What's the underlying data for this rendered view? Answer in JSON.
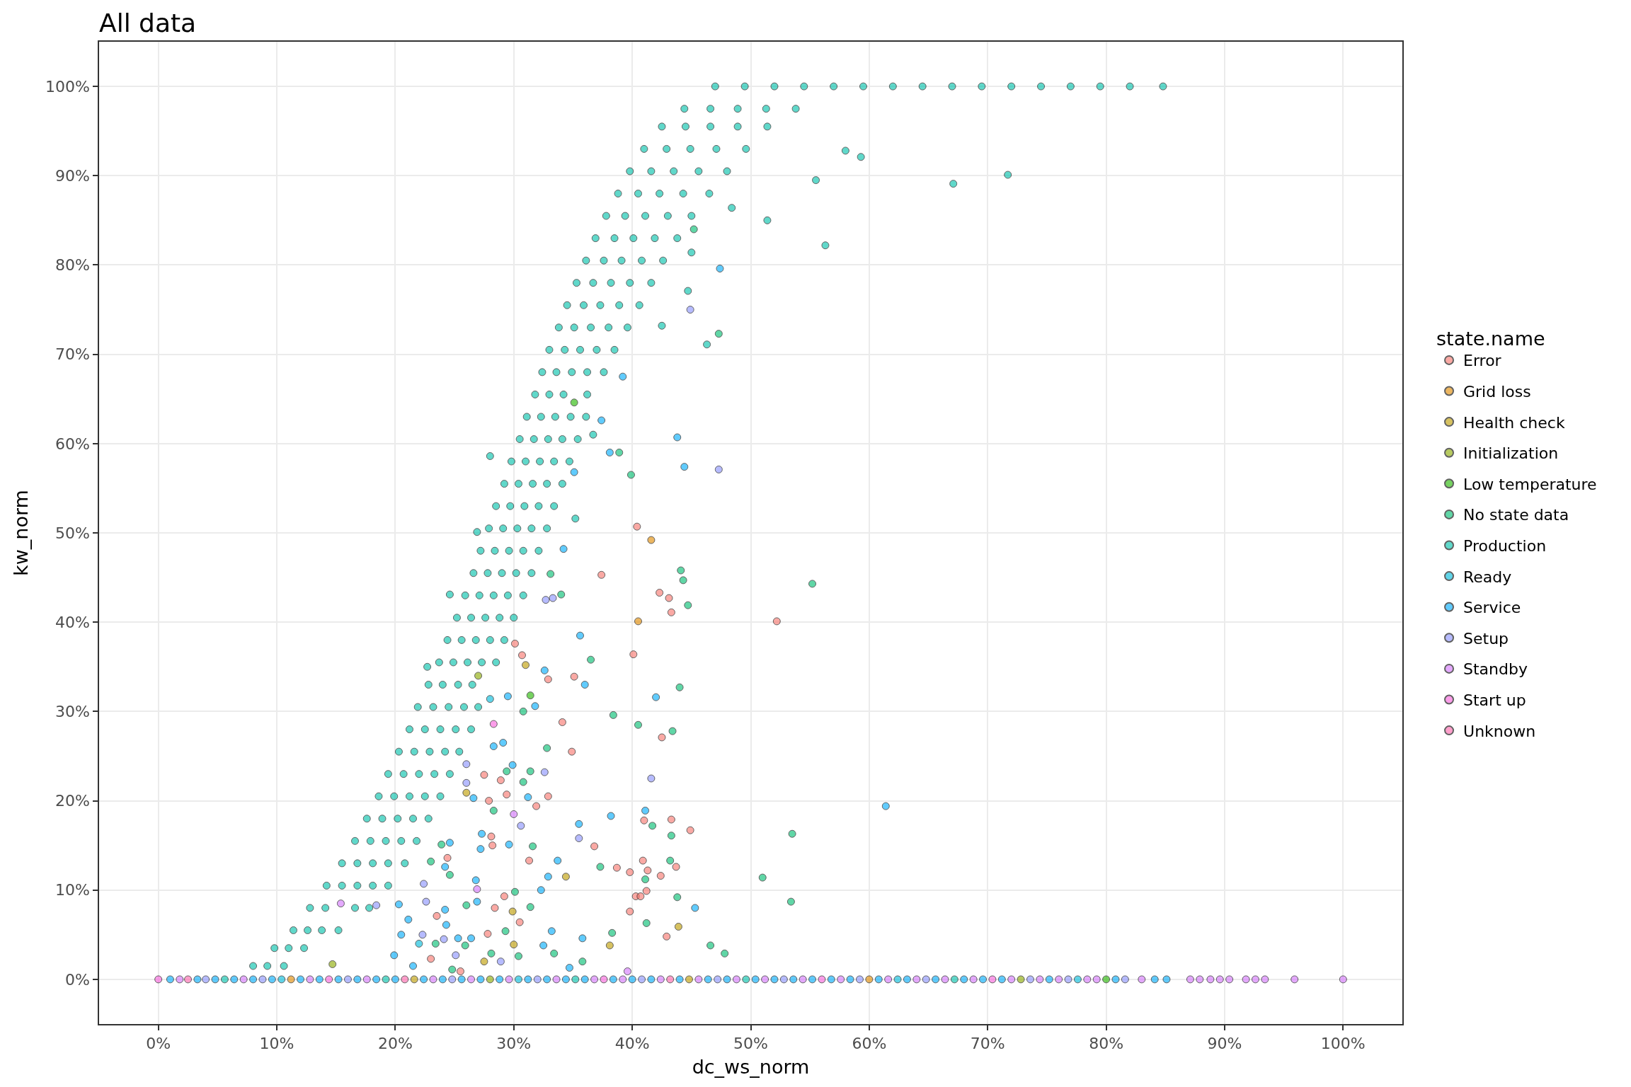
{
  "chart_data": {
    "type": "scatter",
    "title": "All data",
    "xlabel": "dc_ws_norm",
    "ylabel": "kw_norm",
    "legend_title": "state.name",
    "xlim": [
      -5,
      105
    ],
    "ylim": [
      -5,
      105
    ],
    "xticks": [
      {
        "value": 0,
        "label": "0%"
      },
      {
        "value": 10,
        "label": "10%"
      },
      {
        "value": 20,
        "label": "20%"
      },
      {
        "value": 30,
        "label": "30%"
      },
      {
        "value": 40,
        "label": "40%"
      },
      {
        "value": 50,
        "label": "50%"
      },
      {
        "value": 60,
        "label": "60%"
      },
      {
        "value": 70,
        "label": "70%"
      },
      {
        "value": 80,
        "label": "80%"
      },
      {
        "value": 90,
        "label": "90%"
      },
      {
        "value": 100,
        "label": "100%"
      }
    ],
    "yticks": [
      {
        "value": 0,
        "label": "0%"
      },
      {
        "value": 10,
        "label": "10%"
      },
      {
        "value": 20,
        "label": "20%"
      },
      {
        "value": 30,
        "label": "30%"
      },
      {
        "value": 40,
        "label": "40%"
      },
      {
        "value": 50,
        "label": "50%"
      },
      {
        "value": 60,
        "label": "60%"
      },
      {
        "value": 70,
        "label": "70%"
      },
      {
        "value": 80,
        "label": "80%"
      },
      {
        "value": 90,
        "label": "90%"
      },
      {
        "value": 100,
        "label": "100%"
      }
    ],
    "grid": true,
    "legend": "right",
    "marker": "circle",
    "series": [
      {
        "name": "Error",
        "color": "#f8766d",
        "x": [
          40.4,
          37.4,
          42.3,
          43.1,
          43.3,
          52.2,
          40.1,
          30.1,
          30.7,
          35.1,
          32.9,
          34.1,
          34.9,
          42.5,
          27.5,
          28.9,
          29.4,
          27.9,
          32.9,
          31.9,
          41.0,
          43.3,
          44.9,
          28.1,
          28.2,
          24.4,
          31.3,
          36.8,
          38.7,
          39.8,
          41.3,
          40.9,
          43.7,
          42.4,
          40.3,
          40.7,
          41.2,
          29.2,
          28.4,
          23.5,
          39.8,
          27.8,
          30.5,
          42.9,
          23.0,
          25.5
        ],
        "values": [
          50.7,
          45.3,
          43.3,
          42.7,
          41.1,
          40.1,
          36.4,
          37.6,
          36.3,
          33.9,
          33.6,
          28.8,
          25.5,
          27.1,
          22.9,
          22.3,
          20.7,
          20.0,
          20.5,
          19.4,
          17.8,
          17.9,
          16.7,
          16.0,
          15.0,
          13.6,
          13.3,
          14.9,
          12.5,
          12.0,
          12.2,
          13.3,
          12.6,
          11.6,
          9.3,
          9.3,
          9.9,
          9.3,
          8.0,
          7.1,
          7.6,
          5.1,
          6.4,
          4.8,
          2.3,
          0.9
        ]
      },
      {
        "name": "Grid loss",
        "color": "#e18a00",
        "x": [
          40.5,
          41.6,
          11.2,
          60.0
        ],
        "values": [
          40.1,
          49.2,
          0,
          0
        ]
      },
      {
        "name": "Health check",
        "color": "#be9c00",
        "x": [
          31.0,
          34.4,
          43.9,
          38.1,
          30.0,
          29.9,
          27.5,
          26.0,
          21.6,
          44.8
        ],
        "values": [
          35.2,
          11.5,
          5.9,
          3.8,
          3.9,
          7.6,
          2.0,
          20.9,
          0,
          0
        ]
      },
      {
        "name": "Initialization",
        "color": "#8cab00",
        "x": [
          27.0,
          14.7,
          28.0,
          72.8
        ],
        "values": [
          34.0,
          1.7,
          0,
          0
        ]
      },
      {
        "name": "Low temperature",
        "color": "#24b700",
        "x": [
          31.4,
          35.1,
          80.0
        ],
        "values": [
          31.8,
          64.6,
          0
        ]
      },
      {
        "name": "No state data",
        "color": "#00be70",
        "x": [
          33.1,
          34.0,
          44.1,
          44.3,
          44.7,
          36.5,
          44.0,
          38.4,
          40.5,
          43.4,
          30.8,
          32.8,
          31.4,
          30.8,
          29.4,
          28.3,
          31.6,
          37.3,
          43.2,
          41.7,
          43.3,
          41.1,
          43.8,
          41.2,
          38.3,
          46.6,
          47.8,
          51.0,
          30.1,
          31.4,
          26.0,
          29.3,
          30.4,
          28.1,
          23.9,
          24.6,
          23.0,
          25.9,
          23.4,
          24.8,
          33.4,
          35.8,
          45.2,
          47.3,
          39.9,
          38.9,
          55.2,
          53.4,
          53.5
        ],
        "values": [
          45.4,
          43.1,
          45.8,
          44.7,
          41.9,
          35.8,
          32.7,
          29.6,
          28.5,
          27.8,
          30.0,
          25.9,
          23.3,
          22.1,
          23.3,
          18.9,
          14.9,
          12.6,
          13.3,
          17.2,
          16.1,
          11.2,
          9.2,
          6.3,
          5.2,
          3.8,
          2.9,
          11.4,
          9.8,
          8.1,
          8.3,
          5.4,
          2.6,
          2.9,
          15.1,
          11.7,
          13.2,
          3.8,
          4.0,
          1.1,
          2.9,
          2.0,
          84.0,
          72.3,
          56.5,
          59.0,
          44.3,
          8.7,
          16.3
        ]
      },
      {
        "name": "Production",
        "color": "#00c1ab",
        "x": [
          8.0,
          9.2,
          10.6,
          9.8,
          11.0,
          12.3,
          11.4,
          12.6,
          13.8,
          15.2,
          12.8,
          14.1,
          16.6,
          17.8,
          14.2,
          15.5,
          16.8,
          18.1,
          19.4,
          15.5,
          16.8,
          18.1,
          19.4,
          20.8,
          16.6,
          17.9,
          19.2,
          20.5,
          21.8,
          17.6,
          18.9,
          20.2,
          21.5,
          22.8,
          18.6,
          19.9,
          21.2,
          22.5,
          23.8,
          19.4,
          20.7,
          22.0,
          23.3,
          24.6,
          20.3,
          21.6,
          22.9,
          24.2,
          25.4,
          21.2,
          22.5,
          23.8,
          25.1,
          26.4,
          21.9,
          23.2,
          24.5,
          25.8,
          27.0,
          22.8,
          24.0,
          25.3,
          26.5,
          23.7,
          24.9,
          26.1,
          27.3,
          28.5,
          24.4,
          25.6,
          26.8,
          28.0,
          29.2,
          25.2,
          26.4,
          27.6,
          28.8,
          30.0,
          25.9,
          27.1,
          28.3,
          29.5,
          30.8,
          26.6,
          27.8,
          29.0,
          30.2,
          31.5,
          27.2,
          28.4,
          29.6,
          30.8,
          32.1,
          27.9,
          29.1,
          30.3,
          31.5,
          32.8,
          28.5,
          29.7,
          30.9,
          32.1,
          33.4,
          29.2,
          30.4,
          31.6,
          32.8,
          34.1,
          29.8,
          31.0,
          32.2,
          33.4,
          34.7,
          30.5,
          31.7,
          32.9,
          34.1,
          35.4,
          31.1,
          32.3,
          33.5,
          34.8,
          36.1,
          31.8,
          33.0,
          34.2,
          36.2,
          32.4,
          33.6,
          34.9,
          36.2,
          37.6,
          33.0,
          34.3,
          35.6,
          37.0,
          38.5,
          33.8,
          35.1,
          36.5,
          38.0,
          39.6,
          34.5,
          35.9,
          37.3,
          38.9,
          40.6,
          35.3,
          36.7,
          38.2,
          39.8,
          41.6,
          36.1,
          37.6,
          39.1,
          40.8,
          42.6,
          36.9,
          38.5,
          40.1,
          41.9,
          43.8,
          37.8,
          39.4,
          41.1,
          43.0,
          45.0,
          38.8,
          40.5,
          42.3,
          44.3,
          46.5,
          39.8,
          41.6,
          43.5,
          45.6,
          48.0,
          41.0,
          42.9,
          44.9,
          47.1,
          49.6,
          42.5,
          44.5,
          46.6,
          48.9,
          51.4,
          44.4,
          46.6,
          48.9,
          51.3,
          53.8,
          47.0,
          49.5,
          52.0,
          54.5,
          57.0,
          59.5,
          62.0,
          64.5,
          67.0,
          69.5,
          72.0,
          74.5,
          77.0,
          79.5,
          82.0,
          84.8,
          67.1,
          71.7,
          56.3,
          51.4,
          59.3,
          58.0,
          55.5,
          46.3,
          45.0,
          44.7,
          48.4,
          42.5,
          22.7,
          24.6,
          26.9,
          28.0,
          35.2,
          36.7,
          5.6,
          19.2,
          35.2,
          49.6,
          67.2
        ],
        "values": [
          1.5,
          1.5,
          1.5,
          3.5,
          3.5,
          3.5,
          5.5,
          5.5,
          5.5,
          5.5,
          8,
          8,
          8,
          8,
          10.5,
          10.5,
          10.5,
          10.5,
          10.5,
          13,
          13,
          13,
          13,
          13,
          15.5,
          15.5,
          15.5,
          15.5,
          15.5,
          18,
          18,
          18,
          18,
          18,
          20.5,
          20.5,
          20.5,
          20.5,
          20.5,
          23,
          23,
          23,
          23,
          23,
          25.5,
          25.5,
          25.5,
          25.5,
          25.5,
          28,
          28,
          28,
          28,
          28,
          30.5,
          30.5,
          30.5,
          30.5,
          30.5,
          33,
          33,
          33,
          33,
          35.5,
          35.5,
          35.5,
          35.5,
          35.5,
          38,
          38,
          38,
          38,
          38,
          40.5,
          40.5,
          40.5,
          40.5,
          40.5,
          43,
          43,
          43,
          43,
          43,
          45.5,
          45.5,
          45.5,
          45.5,
          45.5,
          48,
          48,
          48,
          48,
          48,
          50.5,
          50.5,
          50.5,
          50.5,
          50.5,
          53,
          53,
          53,
          53,
          53,
          55.5,
          55.5,
          55.5,
          55.5,
          55.5,
          58,
          58,
          58,
          58,
          58,
          60.5,
          60.5,
          60.5,
          60.5,
          60.5,
          63,
          63,
          63,
          63,
          63,
          65.5,
          65.5,
          65.5,
          65.5,
          68,
          68,
          68,
          68,
          68,
          70.5,
          70.5,
          70.5,
          70.5,
          70.5,
          73,
          73,
          73,
          73,
          73,
          75.5,
          75.5,
          75.5,
          75.5,
          75.5,
          78,
          78,
          78,
          78,
          78,
          80.5,
          80.5,
          80.5,
          80.5,
          80.5,
          83,
          83,
          83,
          83,
          83,
          85.5,
          85.5,
          85.5,
          85.5,
          85.5,
          88,
          88,
          88,
          88,
          88,
          90.5,
          90.5,
          90.5,
          90.5,
          90.5,
          93,
          93,
          93,
          93,
          93,
          95.5,
          95.5,
          95.5,
          95.5,
          95.5,
          97.5,
          97.5,
          97.5,
          97.5,
          97.5,
          100,
          100,
          100,
          100,
          100,
          100,
          100,
          100,
          100,
          100,
          100,
          100,
          100,
          100,
          100,
          100,
          89.1,
          90.1,
          82.2,
          85.0,
          92.1,
          92.8,
          89.5,
          71.1,
          81.4,
          77.1,
          86.4,
          73.2,
          35.0,
          43.1,
          50.1,
          58.6,
          51.6,
          61.0,
          0,
          0,
          0,
          0,
          0
        ]
      },
      {
        "name": "Ready",
        "color": "#00bbda",
        "x": [
          28.0,
          22.0,
          10.4,
          30.4,
          62.4,
          77.6
        ],
        "values": [
          31.4,
          4.0,
          0,
          0,
          0,
          0
        ]
      },
      {
        "name": "Service",
        "color": "#00acfc",
        "x": [
          47.4,
          39.2,
          37.4,
          43.8,
          38.1,
          44.4,
          35.1,
          34.2,
          35.6,
          36.0,
          32.6,
          29.5,
          31.8,
          42.0,
          29.1,
          28.3,
          29.9,
          31.2,
          26.6,
          38.2,
          41.1,
          35.5,
          24.6,
          27.3,
          27.2,
          29.6,
          33.7,
          24.2,
          32.9,
          32.3,
          26.8,
          45.3,
          26.9,
          24.2,
          20.3,
          24.3,
          21.1,
          25.3,
          26.4,
          20.5,
          33.2,
          35.8,
          32.5,
          34.7,
          21.5,
          19.9,
          61.4,
          1.0,
          3.3,
          4.8,
          6.4,
          8.0,
          9.6,
          12.0,
          13.6,
          15.2,
          16.8,
          18.4,
          20.0,
          22.4,
          24.0,
          25.6,
          27.2,
          28.8,
          31.2,
          32.8,
          34.4,
          36.0,
          38.4,
          40.0,
          41.6,
          44.0,
          46.4,
          48.0,
          50.4,
          52.0,
          53.6,
          55.2,
          56.8,
          58.4,
          60.8,
          63.2,
          65.6,
          68.0,
          69.6,
          71.2,
          75.2,
          80.8,
          84.1,
          85.1
        ],
        "values": [
          79.6,
          67.5,
          62.6,
          60.7,
          59.0,
          57.4,
          56.8,
          48.2,
          38.5,
          33.0,
          34.6,
          31.7,
          30.6,
          31.6,
          26.5,
          26.1,
          24.0,
          20.4,
          20.3,
          18.3,
          18.9,
          17.4,
          15.3,
          16.3,
          14.6,
          15.1,
          13.3,
          12.6,
          11.5,
          10.0,
          11.1,
          8.0,
          8.7,
          7.8,
          8.4,
          6.1,
          6.7,
          4.6,
          4.6,
          5.0,
          5.4,
          4.6,
          3.8,
          1.3,
          1.5,
          2.7,
          19.4,
          0,
          0,
          0,
          0,
          0,
          0,
          0,
          0,
          0,
          0,
          0,
          0,
          0,
          0,
          0,
          0,
          0,
          0,
          0,
          0,
          0,
          0,
          0,
          0,
          0,
          0,
          0,
          0,
          0,
          0,
          0,
          0,
          0,
          0,
          0,
          0,
          0,
          0,
          0,
          0,
          0,
          0,
          0
        ]
      },
      {
        "name": "Setup",
        "color": "#8b93ff",
        "x": [
          44.9,
          47.3,
          32.7,
          33.3,
          41.6,
          35.5,
          30.6,
          32.6,
          26.0,
          22.4,
          22.6,
          24.1,
          25.1,
          28.9,
          22.3,
          26.0,
          18.4,
          4.0,
          8.8,
          16.0,
          24.8,
          32.0,
          40.8,
          47.2,
          52.8,
          59.2,
          64.8,
          73.6,
          76.8,
          81.6
        ],
        "values": [
          75.0,
          57.1,
          42.5,
          42.7,
          22.5,
          15.8,
          17.2,
          23.2,
          24.1,
          10.7,
          8.7,
          4.5,
          2.7,
          2.0,
          5.0,
          22.0,
          8.3,
          0,
          0,
          0,
          0,
          0,
          0,
          0,
          0,
          0,
          0,
          0,
          0,
          0
        ]
      },
      {
        "name": "Standby",
        "color": "#d575fe",
        "x": [
          30.0,
          26.9,
          15.4,
          39.6,
          1.8,
          7.2,
          12.8,
          17.6,
          23.2,
          26.4,
          29.6,
          33.6,
          36.8,
          39.2,
          42.4,
          45.6,
          48.8,
          51.2,
          54.4,
          57.6,
          61.6,
          64.0,
          66.4,
          68.8,
          72.0,
          74.4,
          76.0,
          78.4,
          79.2,
          83.0,
          87.1,
          87.9,
          88.8,
          89.6,
          90.4,
          91.8,
          92.6,
          93.4,
          95.9,
          100.0
        ],
        "values": [
          18.5,
          10.1,
          8.5,
          0.9,
          0,
          0,
          0,
          0,
          0,
          0,
          0,
          0,
          0,
          0,
          0,
          0,
          0,
          0,
          0,
          0,
          0,
          0,
          0,
          0,
          0,
          0,
          0,
          0,
          0,
          0,
          0,
          0,
          0,
          0,
          0,
          0,
          0,
          0,
          0,
          0
        ]
      },
      {
        "name": "Start up",
        "color": "#f962dd",
        "x": [
          0,
          14.4,
          37.6,
          56.0,
          70.4,
          28.3
        ],
        "values": [
          0,
          0,
          0,
          0,
          0,
          28.6
        ]
      },
      {
        "name": "Unknown",
        "color": "#ff65ac",
        "x": [
          2.5,
          20.8,
          43.2
        ],
        "values": [
          0,
          0,
          0
        ]
      }
    ]
  }
}
